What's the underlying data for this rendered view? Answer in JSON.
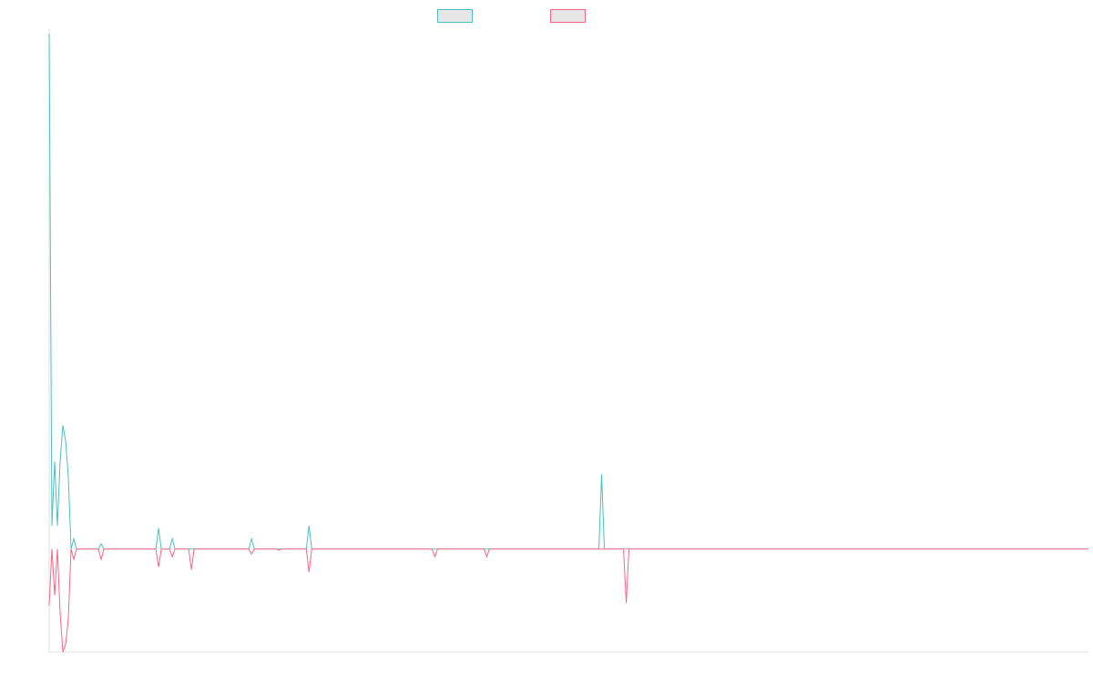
{
  "chart_data": {
    "type": "line",
    "title": "",
    "xlabel": "",
    "ylabel": "",
    "grid": false,
    "legend": "top-center",
    "xlim": [
      0,
      380
    ],
    "ylim": [
      -40,
      200
    ],
    "x_start": 0,
    "x_step": 1,
    "series": [
      {
        "color": "#4bc0c0",
        "values": [
          200,
          9,
          34,
          9,
          34,
          48,
          42,
          28,
          0,
          4,
          0,
          0,
          0,
          0,
          0,
          0,
          0,
          0,
          0,
          2,
          0,
          0,
          0,
          0,
          0,
          0,
          0,
          0,
          0,
          0,
          0,
          0,
          0,
          0,
          0,
          0,
          0,
          0,
          0,
          0,
          8,
          0,
          0,
          0,
          0,
          4,
          0,
          0,
          0,
          0,
          0,
          0,
          0,
          0,
          0,
          0,
          0,
          0,
          0,
          0,
          0,
          0,
          0,
          0,
          0,
          0,
          0,
          0,
          0,
          0,
          0,
          0,
          0,
          0,
          4,
          0,
          0,
          0,
          0,
          0,
          0,
          0,
          0,
          0,
          0,
          0,
          0,
          0,
          0,
          0,
          0,
          0,
          0,
          0,
          0,
          9,
          0,
          0,
          0,
          0,
          0,
          0,
          0,
          0,
          0,
          0,
          0,
          0,
          0,
          0,
          0,
          0,
          0,
          0,
          0,
          0,
          0,
          0,
          0,
          0,
          0,
          0,
          0,
          0,
          0,
          0,
          0,
          0,
          0,
          0,
          0,
          0,
          0,
          0,
          0,
          0,
          0,
          0,
          0,
          0,
          0,
          0,
          0,
          0,
          0,
          0,
          0,
          0,
          0,
          0,
          0,
          0,
          0,
          0,
          0,
          0,
          0,
          0,
          0,
          0,
          0,
          0,
          0,
          0,
          0,
          0,
          0,
          0,
          0,
          0,
          0,
          0,
          0,
          0,
          0,
          0,
          0,
          0,
          0,
          0,
          0,
          0,
          0,
          0,
          0,
          0,
          0,
          0,
          0,
          0,
          0,
          0,
          0,
          0,
          0,
          0,
          0,
          0,
          0,
          0,
          0,
          0,
          29,
          0
        ]
      },
      {
        "color": "#ff6384",
        "values": [
          -22,
          0,
          -18,
          0,
          -25,
          -40,
          -37,
          -27,
          0,
          -4,
          0,
          0,
          0,
          0,
          0,
          0,
          0,
          0,
          0,
          -4,
          0,
          0,
          0,
          0,
          0,
          0,
          0,
          0,
          0,
          0,
          0,
          0,
          0,
          0,
          0,
          0,
          0,
          0,
          0,
          0,
          -7,
          0,
          0,
          0,
          0,
          -3,
          0,
          0,
          0,
          0,
          0,
          0,
          -8,
          0,
          0,
          0,
          0,
          0,
          0,
          0,
          0,
          0,
          0,
          0,
          0,
          0,
          0,
          0,
          0,
          0,
          0,
          0,
          0,
          0,
          -2,
          0,
          0,
          0,
          0,
          0,
          0,
          0,
          0,
          0,
          -0.5,
          0,
          0,
          0,
          0,
          0,
          0,
          0,
          0,
          0,
          0,
          -9,
          0,
          0,
          0,
          0,
          0,
          0,
          0,
          0,
          0,
          0,
          0,
          0,
          0,
          0,
          0,
          0,
          0,
          0,
          0,
          0,
          0,
          0,
          0,
          0,
          0,
          0,
          0,
          0,
          0,
          0,
          0,
          0,
          0,
          0,
          0,
          0,
          0,
          0,
          0,
          0,
          0,
          0,
          0,
          0,
          0,
          -3,
          0,
          0,
          0,
          0,
          0,
          0,
          0,
          0,
          0,
          0,
          0,
          0,
          0,
          0,
          0,
          0,
          0,
          0,
          -3,
          0,
          0,
          0,
          0,
          0,
          0,
          0,
          0,
          0,
          0,
          0,
          0,
          0,
          0,
          0,
          0,
          0,
          0,
          0,
          0,
          0,
          0,
          0,
          0,
          0,
          0,
          0,
          0,
          0,
          0,
          0,
          0,
          0,
          0,
          0,
          0,
          0,
          0,
          0,
          0,
          0,
          0,
          0,
          0,
          0,
          0,
          0,
          0,
          0,
          0,
          -21,
          0
        ]
      }
    ]
  }
}
